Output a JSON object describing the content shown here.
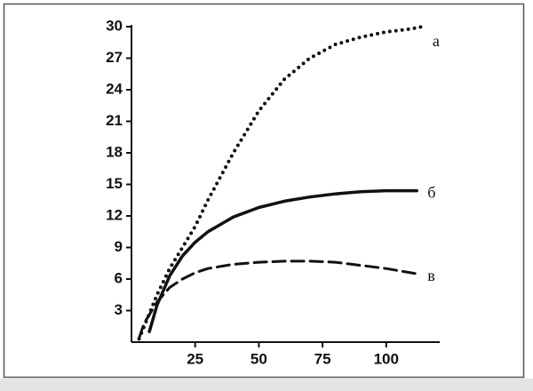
{
  "chart_data": {
    "type": "line",
    "xlim": [
      0,
      121
    ],
    "ylim": [
      0,
      30
    ],
    "xticks": [
      25,
      50,
      75,
      100
    ],
    "yticks": [
      3,
      6,
      9,
      12,
      15,
      18,
      21,
      24,
      27,
      30
    ],
    "series": [
      {
        "name": "а",
        "color": "#111111",
        "style": "dotted",
        "x": [
          3,
          5,
          10,
          15,
          20,
          25,
          30,
          40,
          50,
          60,
          70,
          80,
          90,
          100,
          110,
          114
        ],
        "values": [
          0.3,
          1.5,
          4.5,
          7,
          9,
          11,
          13.5,
          18,
          22,
          25,
          27,
          28.3,
          29,
          29.5,
          29.8,
          30
        ]
      },
      {
        "name": "б",
        "color": "#111111",
        "style": "solid",
        "x": [
          7,
          10,
          15,
          20,
          25,
          30,
          40,
          50,
          60,
          70,
          80,
          90,
          100,
          112
        ],
        "values": [
          1,
          3.5,
          6.3,
          8.2,
          9.5,
          10.5,
          11.9,
          12.8,
          13.4,
          13.8,
          14.1,
          14.3,
          14.4,
          14.4
        ]
      },
      {
        "name": "в",
        "color": "#111111",
        "style": "dashed",
        "x": [
          3,
          5,
          10,
          15,
          20,
          25,
          30,
          40,
          50,
          60,
          70,
          80,
          90,
          100,
          112
        ],
        "values": [
          0.4,
          1.8,
          3.8,
          5.2,
          6,
          6.6,
          7,
          7.4,
          7.6,
          7.7,
          7.7,
          7.6,
          7.3,
          7,
          6.5
        ]
      }
    ]
  }
}
